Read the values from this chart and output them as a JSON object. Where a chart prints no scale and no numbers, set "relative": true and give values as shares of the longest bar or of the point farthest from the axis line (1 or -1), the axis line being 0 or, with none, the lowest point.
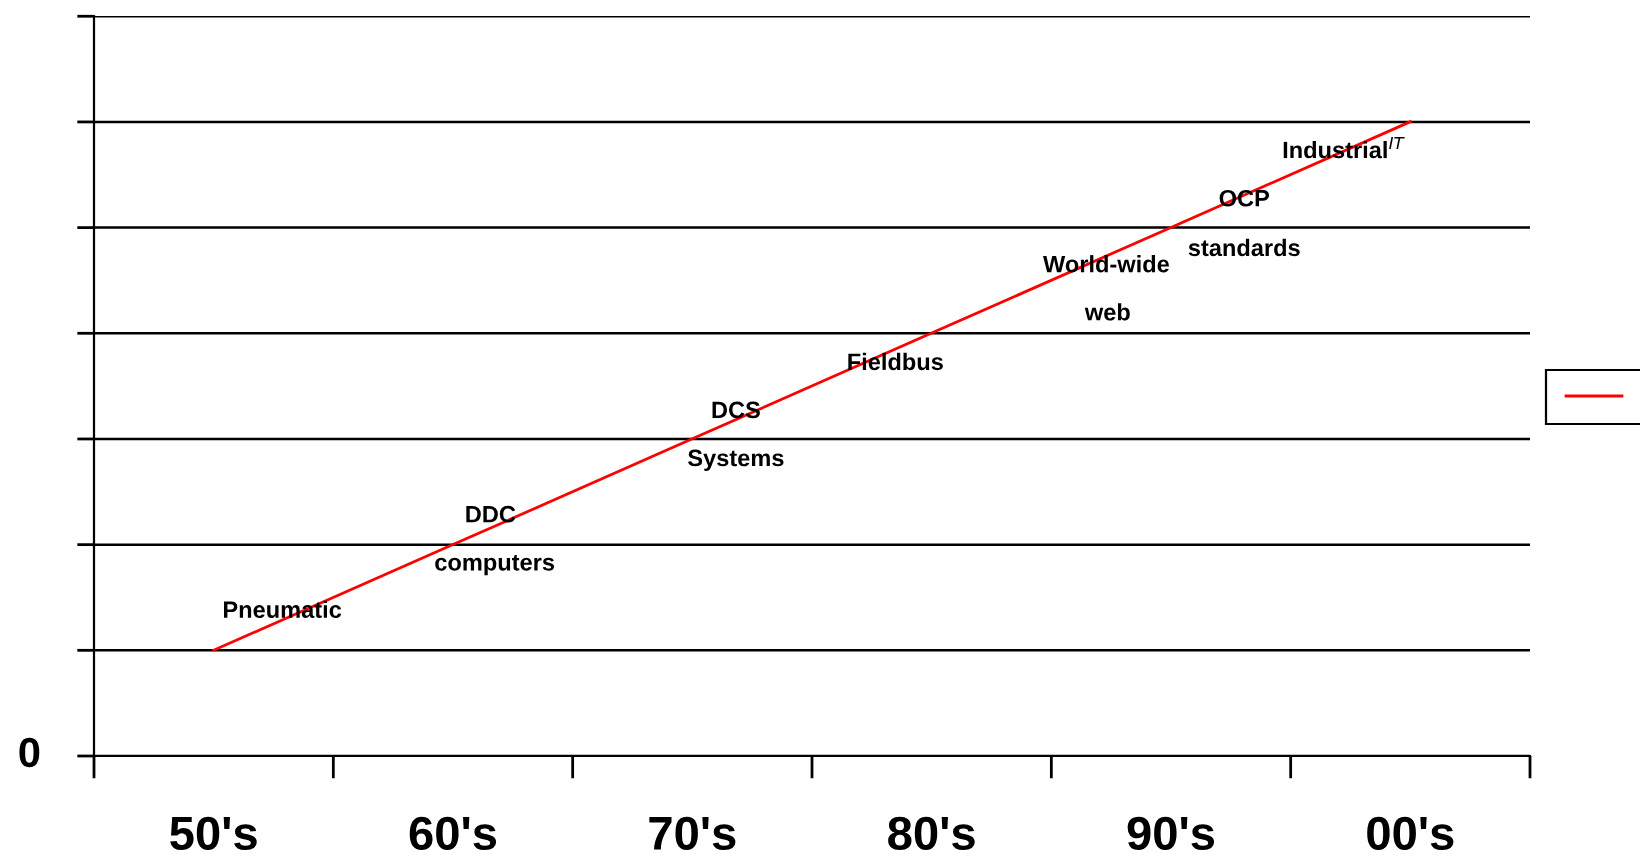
{
  "chart_data": {
    "type": "line",
    "relative": true,
    "categories": [
      "50's",
      "60's",
      "70's",
      "80's",
      "90's",
      "00's"
    ],
    "series": [
      {
        "color": "#ff0000",
        "values": [
          0.1667,
          0.3333,
          0.5,
          0.6667,
          0.8333,
          1
        ]
      }
    ],
    "grid": "y",
    "marker": "none",
    "line_style": "solid",
    "annotations": [
      "0",
      "Pneumatic",
      "DDC",
      "computers",
      "DCS",
      "Systems",
      "Fieldbus",
      "World-wide",
      "web",
      "standards",
      "OCP",
      "Industrial$^{IT}$"
    ]
  }
}
